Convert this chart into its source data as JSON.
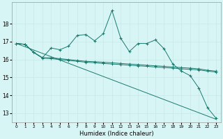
{
  "xlabel": "Humidex (Indice chaleur)",
  "x_values": [
    0,
    1,
    2,
    3,
    4,
    5,
    6,
    7,
    8,
    9,
    10,
    11,
    12,
    13,
    14,
    15,
    16,
    17,
    18,
    19,
    20,
    21,
    22,
    23
  ],
  "series_jagged": [
    16.9,
    16.85,
    16.4,
    16.1,
    16.65,
    16.55,
    16.75,
    17.35,
    17.4,
    17.05,
    17.45,
    18.75,
    17.2,
    16.45,
    16.9,
    16.9,
    17.1,
    16.6,
    15.75,
    15.35,
    15.1,
    14.4,
    13.3,
    12.7
  ],
  "series_upper": [
    16.9,
    16.85,
    16.4,
    16.1,
    16.1,
    16.05,
    16.0,
    15.95,
    15.9,
    15.88,
    15.85,
    15.82,
    15.78,
    15.75,
    15.72,
    15.68,
    15.65,
    15.62,
    15.58,
    15.55,
    15.52,
    15.48,
    15.4,
    15.35
  ],
  "series_lower": [
    16.9,
    16.85,
    16.4,
    16.08,
    16.05,
    16.0,
    15.95,
    15.9,
    15.85,
    15.82,
    15.78,
    15.75,
    15.72,
    15.68,
    15.65,
    15.62,
    15.58,
    15.55,
    15.52,
    15.48,
    15.45,
    15.42,
    15.35,
    15.3
  ],
  "line_color": "#1a7a6e",
  "bg_color": "#d8f5f5",
  "grid_color": "#c8e8e8",
  "ylim": [
    12.5,
    19.2
  ],
  "yticks": [
    13,
    14,
    15,
    16,
    17,
    18
  ],
  "xlim": [
    -0.5,
    23.5
  ],
  "diag_start_y": 16.9,
  "diag_end_y": 12.65
}
